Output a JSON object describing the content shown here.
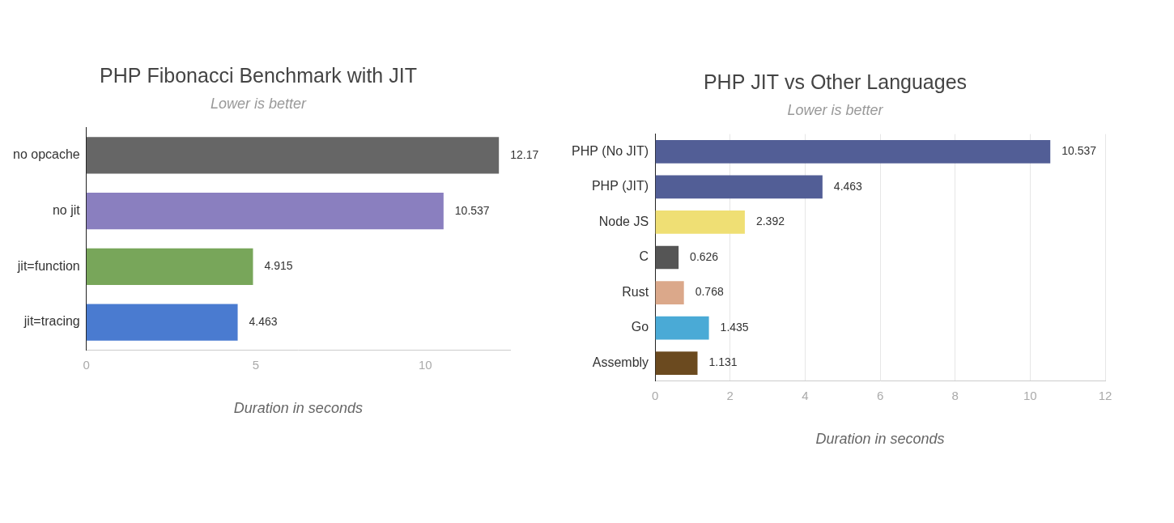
{
  "chart_data": [
    {
      "type": "bar",
      "orientation": "horizontal",
      "title": "PHP Fibonacci Benchmark with JIT",
      "subtitle": "Lower is better",
      "xlabel": "Duration in seconds",
      "categories": [
        "no opcache",
        "no jit",
        "jit=function",
        "jit=tracing"
      ],
      "values": [
        12.17,
        10.537,
        4.915,
        4.463
      ],
      "colors": [
        "#666666",
        "#8a7fbf",
        "#78a65a",
        "#4a7bd0"
      ],
      "xlim": [
        0,
        12.5
      ],
      "xticks": [
        0,
        5,
        10
      ],
      "grid": false,
      "data_labels": true
    },
    {
      "type": "bar",
      "orientation": "horizontal",
      "title": "PHP JIT vs Other Languages",
      "subtitle": "Lower is better",
      "xlabel": "Duration in seconds",
      "categories": [
        "PHP (No JIT)",
        "PHP (JIT)",
        "Node JS",
        "C",
        "Rust",
        "Go",
        "Assembly"
      ],
      "values": [
        10.537,
        4.463,
        2.392,
        0.626,
        0.768,
        1.435,
        1.131
      ],
      "colors": [
        "#525e96",
        "#525e96",
        "#efdf74",
        "#555555",
        "#dba88a",
        "#4aaad6",
        "#6b4a1f"
      ],
      "xlim": [
        0,
        12
      ],
      "xticks": [
        0,
        2,
        4,
        6,
        8,
        10,
        12
      ],
      "grid": true,
      "data_labels": true
    }
  ]
}
